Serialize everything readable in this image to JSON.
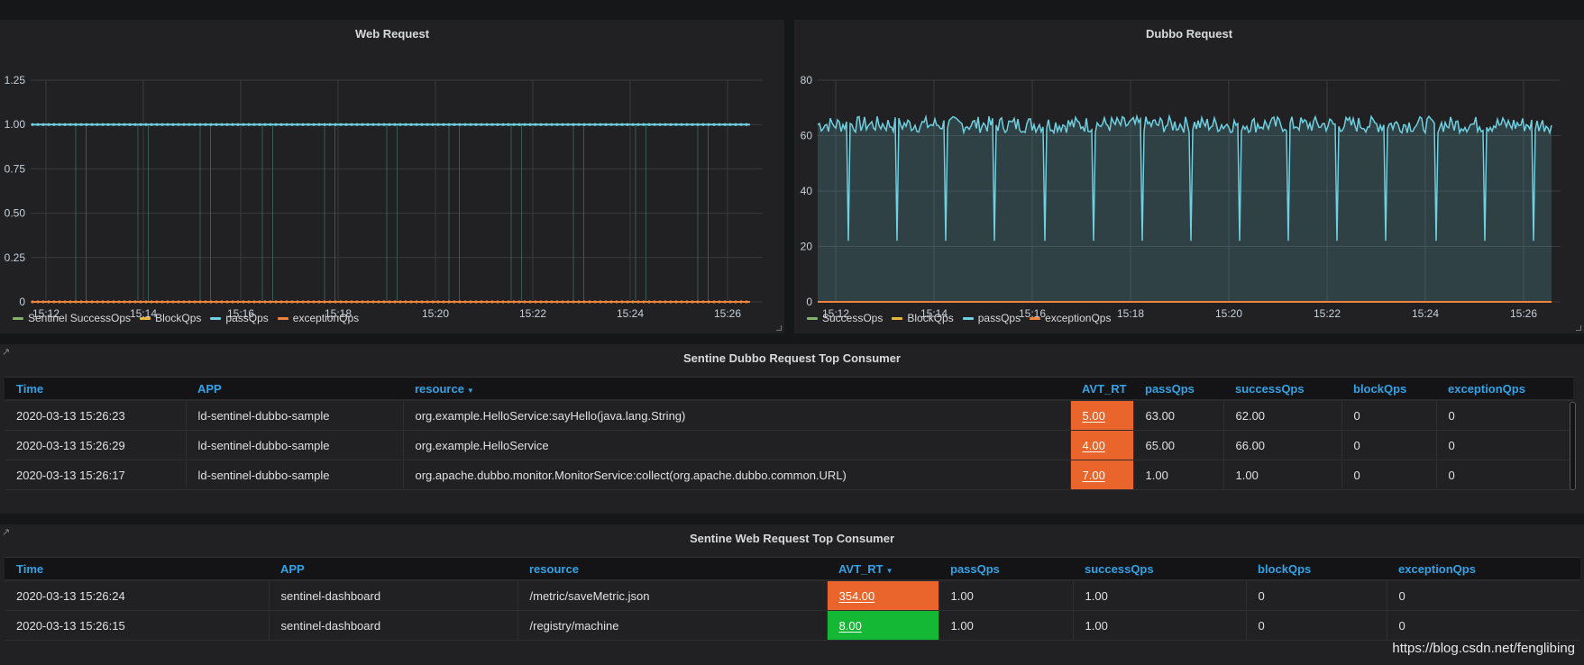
{
  "colors": {
    "success": "#7eb26d",
    "block": "#eab839",
    "pass": "#6ed0e0",
    "exception": "#ef843c",
    "header_link": "#33a2e5",
    "rt_orange": "#e9652b",
    "rt_green": "#15b834"
  },
  "web_panel": {
    "title": "Web Request",
    "legend": [
      {
        "label": "Sentinel SuccessOps",
        "color": "#7eb26d"
      },
      {
        "label": "BlockQps",
        "color": "#eab839"
      },
      {
        "label": "passQps",
        "color": "#6ed0e0"
      },
      {
        "label": "exceptionQps",
        "color": "#ef843c"
      }
    ],
    "chart_data": {
      "type": "line",
      "x_ticks": [
        "15:12",
        "15:14",
        "15:16",
        "15:18",
        "15:20",
        "15:22",
        "15:24",
        "15:26"
      ],
      "y_ticks": [
        "1.25",
        "1.00",
        "0.75",
        "0.50",
        "0.25",
        "0"
      ],
      "ylim": [
        0,
        1.25
      ],
      "series": [
        {
          "name": "passQps",
          "value": 1.0
        },
        {
          "name": "exceptionQps",
          "value": 0
        }
      ],
      "grid": true
    }
  },
  "dubbo_panel": {
    "title": "Dubbo Request",
    "legend": [
      {
        "label": "SuccessOps",
        "color": "#7eb26d"
      },
      {
        "label": "BlockQps",
        "color": "#eab839"
      },
      {
        "label": "passQps",
        "color": "#6ed0e0"
      },
      {
        "label": "exceptionQps",
        "color": "#ef843c"
      }
    ],
    "chart_data": {
      "type": "area",
      "x_ticks": [
        "15:12",
        "15:14",
        "15:16",
        "15:18",
        "15:20",
        "15:22",
        "15:24",
        "15:26"
      ],
      "y_ticks": [
        "80",
        "60",
        "40",
        "20",
        "0"
      ],
      "ylim": [
        0,
        80
      ],
      "series": [
        {
          "name": "passQps",
          "baseline": 64,
          "dips_to": 22,
          "dip_count": 15
        },
        {
          "name": "exceptionQps",
          "value": 0
        }
      ],
      "grid": true
    }
  },
  "dubbo_table": {
    "title": "Sentine Dubbo Request Top Consumer",
    "columns": [
      "Time",
      "APP",
      "resource",
      "AVT_RT",
      "passQps",
      "successQps",
      "blockQps",
      "exceptionQps"
    ],
    "sorted_column": "resource",
    "rows": [
      {
        "time": "2020-03-13 15:26:23",
        "app": "ld-sentinel-dubbo-sample",
        "resource": "org.example.HelloService:sayHello(java.lang.String)",
        "rt": "5.00",
        "pass": "63.00",
        "success": "62.00",
        "block": "0",
        "exception": "0"
      },
      {
        "time": "2020-03-13 15:26:29",
        "app": "ld-sentinel-dubbo-sample",
        "resource": "org.example.HelloService",
        "rt": "4.00",
        "pass": "65.00",
        "success": "66.00",
        "block": "0",
        "exception": "0"
      },
      {
        "time": "2020-03-13 15:26:17",
        "app": "ld-sentinel-dubbo-sample",
        "resource": "org.apache.dubbo.monitor.MonitorService:collect(org.apache.dubbo.common.URL)",
        "rt": "7.00",
        "pass": "1.00",
        "success": "1.00",
        "block": "0",
        "exception": "0"
      }
    ]
  },
  "web_table": {
    "title": "Sentine Web Request Top Consumer",
    "columns": [
      "Time",
      "APP",
      "resource",
      "AVT_RT",
      "passQps",
      "successQps",
      "blockQps",
      "exceptionQps"
    ],
    "sorted_column": "AVT_RT",
    "rows": [
      {
        "time": "2020-03-13 15:26:24",
        "app": "sentinel-dashboard",
        "resource": "/metric/saveMetric.json",
        "rt": "354.00",
        "rt_color": "#e9652b",
        "pass": "1.00",
        "success": "1.00",
        "block": "0",
        "exception": "0"
      },
      {
        "time": "2020-03-13 15:26:15",
        "app": "sentinel-dashboard",
        "resource": "/registry/machine",
        "rt": "8.00",
        "rt_color": "#15b834",
        "pass": "1.00",
        "success": "1.00",
        "block": "0",
        "exception": "0"
      }
    ]
  },
  "watermark": "https://blog.csdn.net/fenglibing"
}
